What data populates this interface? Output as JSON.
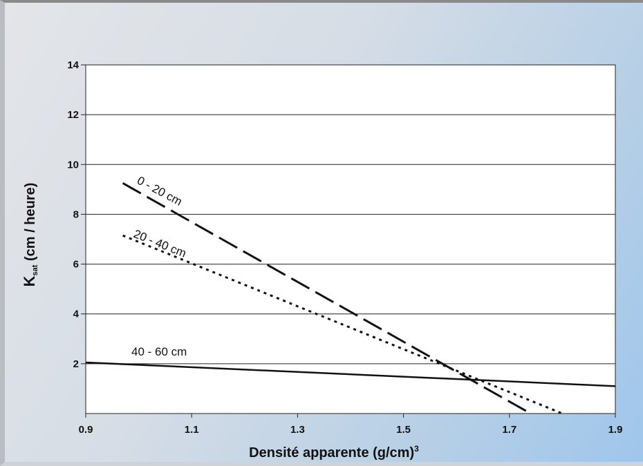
{
  "chart_data": {
    "type": "line",
    "xlabel": "Densité apparente (g/cm)",
    "xlabel_superscript": "3",
    "ylabel_main": "K",
    "ylabel_sub": "sat",
    "ylabel_rest": " (cm / heure)",
    "xlim": [
      0.9,
      1.9
    ],
    "ylim": [
      0,
      14
    ],
    "x_ticks": [
      0.9,
      1.1,
      1.3,
      1.5,
      1.7,
      1.9
    ],
    "x_tick_labels": [
      "0.9",
      "1.1",
      "1.3",
      "1.5",
      "1.7",
      "1.9"
    ],
    "y_ticks": [
      2,
      4,
      6,
      8,
      10,
      12,
      14
    ],
    "y_tick_labels": [
      "2",
      "4",
      "6",
      "8",
      "10",
      "12",
      "14"
    ],
    "grid": "horizontal",
    "series": [
      {
        "name": "0 - 20 cm",
        "style": "long-dash",
        "x": [
          0.97,
          1.74
        ],
        "y": [
          9.25,
          0.0
        ]
      },
      {
        "name": "20 - 40 cm",
        "style": "dotted",
        "x": [
          0.97,
          1.8
        ],
        "y": [
          7.15,
          0.0
        ]
      },
      {
        "name": "40 - 60 cm",
        "style": "solid",
        "x": [
          0.9,
          1.9
        ],
        "y": [
          2.05,
          1.1
        ]
      }
    ]
  }
}
